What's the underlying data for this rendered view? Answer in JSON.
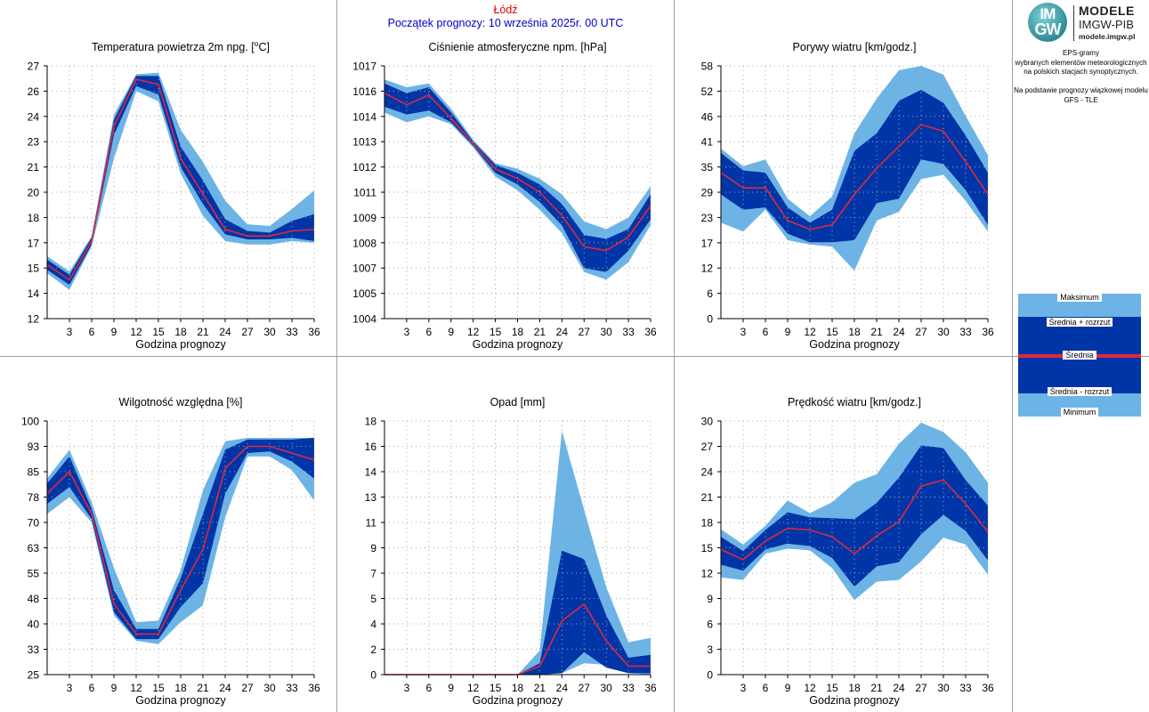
{
  "header": {
    "station": "Łódź",
    "forecast_start": "Początek prognozy: 10 września 2025r. 00 UTC"
  },
  "logo": {
    "circle_top": "IM",
    "circle_bottom": "GW",
    "title": "MODELE",
    "org": "IMGW-PIB",
    "site": "modele.imgw.pl"
  },
  "description": {
    "lines": [
      "EPS-gramy",
      "wybranych elementów meteorologicznych",
      "na polskich stacjach  synoptycznych.",
      "",
      "Na podstawie prognozy wiązkowej modelu",
      "GFS - TLE"
    ]
  },
  "legend": {
    "max": "Maksimum",
    "mean_plus": "Średnia + rozrzut",
    "mean": "Średnia",
    "mean_minus": "Średnia - rozrzut",
    "min": "Minimum"
  },
  "colors": {
    "light_band": "#6cb4e6",
    "dark_band": "#0035a8",
    "mean_line": "#e0283a",
    "grid_dot": "#a8a8a8",
    "divider": "#a0a0a0"
  },
  "chart_data": [
    {
      "type": "area",
      "title": "Temperatura powietrza 2m npg. [°C]",
      "title_main": "Temperatura powietrza 2m npg. [",
      "title_sup": "o",
      "title_end": "C]",
      "xlabel": "Godzina prognozy",
      "x": [
        0,
        3,
        6,
        9,
        12,
        15,
        18,
        21,
        24,
        27,
        30,
        33,
        36
      ],
      "xticks": [
        3,
        6,
        9,
        12,
        15,
        18,
        21,
        24,
        27,
        30,
        33,
        36
      ],
      "ylim": [
        12,
        27
      ],
      "yticks": [
        12,
        14,
        15,
        17,
        18,
        20,
        21,
        23,
        24,
        26,
        27
      ],
      "ytick_values": [
        12,
        13.5,
        15,
        16.5,
        18,
        19.5,
        21,
        22.5,
        24,
        25.5,
        27
      ],
      "series": {
        "min": [
          14.7,
          13.7,
          16.3,
          21.5,
          25.5,
          24.9,
          20.6,
          18.1,
          16.6,
          16.4,
          16.4,
          16.6,
          16.5
        ],
        "lower": [
          14.9,
          14.0,
          16.4,
          22.9,
          25.8,
          25.3,
          21.0,
          18.8,
          17.0,
          16.7,
          16.7,
          16.8,
          16.6
        ],
        "mean": [
          15.2,
          14.3,
          16.6,
          23.4,
          26.2,
          25.9,
          21.5,
          19.4,
          17.3,
          16.9,
          16.9,
          17.2,
          17.3
        ],
        "upper": [
          15.5,
          14.6,
          16.8,
          23.8,
          26.4,
          26.4,
          22.2,
          20.2,
          17.9,
          17.2,
          17.1,
          17.8,
          18.2
        ],
        "max": [
          15.7,
          14.8,
          16.9,
          24.1,
          26.5,
          26.6,
          23.2,
          21.3,
          19.0,
          17.6,
          17.5,
          18.5,
          19.6
        ]
      }
    },
    {
      "type": "area",
      "title": "Ciśnienie atmosferyczne npm. [hPa]",
      "xlabel": "Godzina prognozy",
      "x": [
        0,
        3,
        6,
        9,
        12,
        15,
        18,
        21,
        24,
        27,
        30,
        33,
        36
      ],
      "xticks": [
        3,
        6,
        9,
        12,
        15,
        18,
        21,
        24,
        27,
        30,
        33,
        36
      ],
      "ylim": [
        1004,
        1017
      ],
      "yticks": [
        1004,
        1005,
        1007,
        1008,
        1009,
        1011,
        1012,
        1013,
        1014,
        1016,
        1017
      ],
      "ytick_values": [
        1004,
        1005.3,
        1006.6,
        1007.9,
        1009.2,
        1010.5,
        1011.8,
        1013.1,
        1014.4,
        1015.7,
        1017
      ],
      "series": {
        "min": [
          1014.6,
          1014.1,
          1014.4,
          1014.0,
          1012.8,
          1011.3,
          1010.6,
          1009.6,
          1008.4,
          1006.4,
          1006.0,
          1006.9,
          1008.8
        ],
        "lower": [
          1014.9,
          1014.5,
          1014.7,
          1014.1,
          1012.9,
          1011.5,
          1010.9,
          1010.0,
          1008.8,
          1006.6,
          1006.4,
          1007.5,
          1009.1
        ],
        "mean": [
          1015.6,
          1015.0,
          1015.5,
          1014.3,
          1013.0,
          1011.7,
          1011.2,
          1010.5,
          1009.3,
          1007.7,
          1007.5,
          1008.2,
          1009.8
        ],
        "upper": [
          1016.1,
          1015.6,
          1015.9,
          1014.6,
          1013.1,
          1011.9,
          1011.5,
          1010.9,
          1009.9,
          1008.3,
          1008.1,
          1008.6,
          1010.4
        ],
        "max": [
          1016.3,
          1015.9,
          1016.1,
          1014.8,
          1013.2,
          1012.0,
          1011.7,
          1011.2,
          1010.4,
          1009.0,
          1008.6,
          1009.2,
          1010.8
        ]
      }
    },
    {
      "type": "area",
      "title": "Porywy wiatru [km/godz.]",
      "xlabel": "Godzina prognozy",
      "x": [
        0,
        3,
        6,
        9,
        12,
        15,
        18,
        21,
        24,
        27,
        30,
        33,
        36
      ],
      "xticks": [
        3,
        6,
        9,
        12,
        15,
        18,
        21,
        24,
        27,
        30,
        33,
        36
      ],
      "ylim": [
        0,
        58
      ],
      "yticks": [
        0,
        6,
        12,
        17,
        23,
        29,
        35,
        41,
        46,
        52,
        58
      ],
      "ytick_values": [
        0,
        5.8,
        11.6,
        17.4,
        23.2,
        29,
        34.8,
        40.6,
        46.4,
        52.2,
        58
      ],
      "series": {
        "min": [
          22,
          20,
          25,
          18,
          17,
          16.5,
          11,
          22.5,
          24.5,
          32,
          33,
          27,
          20
        ],
        "lower": [
          28.5,
          25,
          25.5,
          19.5,
          17.5,
          17.5,
          18,
          26.5,
          27.5,
          36.5,
          35.5,
          29.5,
          21.5
        ],
        "mean": [
          33.5,
          30,
          30,
          22.5,
          20.5,
          21.5,
          28.5,
          34.5,
          39.5,
          44.5,
          43,
          36,
          28.5
        ],
        "upper": [
          38,
          34,
          33.5,
          25.5,
          22,
          25,
          38.5,
          42.5,
          50,
          52.5,
          49.5,
          42,
          33.5
        ],
        "max": [
          39,
          35,
          36.5,
          27.5,
          23.5,
          28,
          42.5,
          50.5,
          57,
          58,
          56,
          46.5,
          37.5
        ]
      }
    },
    {
      "type": "area",
      "title": "Wilgotność względna [%]",
      "xlabel": "Godzina prognozy",
      "x": [
        0,
        3,
        6,
        9,
        12,
        15,
        18,
        21,
        24,
        27,
        30,
        33,
        36
      ],
      "xticks": [
        3,
        6,
        9,
        12,
        15,
        18,
        21,
        24,
        27,
        30,
        33,
        36
      ],
      "ylim": [
        25,
        100
      ],
      "yticks": [
        25,
        33,
        40,
        48,
        55,
        63,
        70,
        78,
        85,
        93,
        100
      ],
      "ytick_values": [
        25,
        32.5,
        40,
        47.5,
        55,
        62.5,
        70,
        77.5,
        85,
        92.5,
        100
      ],
      "series": {
        "min": [
          72.5,
          77.5,
          70,
          42.5,
          35,
          34,
          40.5,
          45.5,
          71.5,
          89.5,
          89.5,
          85.5,
          76.5
        ],
        "lower": [
          75.5,
          80.5,
          71,
          43.5,
          35.5,
          35.5,
          45,
          52,
          78.5,
          90.5,
          91,
          88,
          83
        ],
        "mean": [
          78.5,
          85,
          72.5,
          46,
          37,
          37,
          50,
          62,
          86,
          92.5,
          92.5,
          90.5,
          88.5
        ],
        "upper": [
          81.5,
          89.5,
          74,
          50,
          38.5,
          38.5,
          53.5,
          72.5,
          91.5,
          94.5,
          94.5,
          94.5,
          95
        ],
        "max": [
          83,
          91.5,
          76,
          56.5,
          40.5,
          41,
          56,
          79.5,
          94,
          95,
          95,
          95,
          95
        ]
      }
    },
    {
      "type": "area",
      "title": "Opad [mm]",
      "xlabel": "Godzina prognozy",
      "x": [
        0,
        3,
        6,
        9,
        12,
        15,
        18,
        21,
        24,
        27,
        30,
        33,
        36
      ],
      "xticks": [
        3,
        6,
        9,
        12,
        15,
        18,
        21,
        24,
        27,
        30,
        33,
        36
      ],
      "ylim": [
        0,
        18
      ],
      "yticks": [
        0,
        2,
        4,
        5,
        7,
        9,
        11,
        13,
        14,
        16,
        18
      ],
      "ytick_values": [
        0,
        1.8,
        3.6,
        5.4,
        7.2,
        9,
        10.8,
        12.6,
        14.4,
        16.2,
        18
      ],
      "series": {
        "min": [
          0,
          0,
          0,
          0,
          0,
          0,
          0,
          0,
          0.1,
          0.8,
          0.7,
          0.1,
          0
        ],
        "lower": [
          0,
          0,
          0,
          0,
          0,
          0,
          0,
          0,
          0.1,
          1.6,
          0.5,
          0.1,
          0.1
        ],
        "mean": [
          0,
          0,
          0,
          0,
          0,
          0,
          0,
          0.6,
          3.8,
          5.0,
          2.4,
          0.6,
          0.6
        ],
        "upper": [
          0,
          0,
          0,
          0,
          0,
          0,
          0,
          0.8,
          8.8,
          8.2,
          4.2,
          1.2,
          1.4
        ],
        "max": [
          0,
          0,
          0,
          0,
          0,
          0,
          0,
          1.7,
          17.3,
          11.7,
          6.2,
          2.3,
          2.6
        ]
      }
    },
    {
      "type": "area",
      "title": "Prędkość wiatru [km/godz.]",
      "xlabel": "Godzina prognozy",
      "x": [
        0,
        3,
        6,
        9,
        12,
        15,
        18,
        21,
        24,
        27,
        30,
        33,
        36
      ],
      "xticks": [
        3,
        6,
        9,
        12,
        15,
        18,
        21,
        24,
        27,
        30,
        33,
        36
      ],
      "ylim": [
        0,
        30
      ],
      "yticks": [
        0,
        3,
        6,
        9,
        12,
        15,
        18,
        21,
        24,
        27,
        30
      ],
      "ytick_values": [
        0,
        3,
        6,
        9,
        12,
        15,
        18,
        21,
        24,
        27,
        30
      ],
      "series": {
        "min": [
          11.5,
          11.2,
          14.3,
          14.9,
          14.7,
          12.6,
          8.8,
          11.0,
          11.2,
          13.4,
          16.2,
          15.4,
          11.8
        ],
        "lower": [
          13.0,
          12.3,
          14.8,
          15.5,
          15.2,
          13.8,
          10.4,
          12.8,
          13.3,
          16.6,
          18.9,
          17.0,
          13.5
        ],
        "mean": [
          14.8,
          13.6,
          15.8,
          17.3,
          17.1,
          16.3,
          14.3,
          16.4,
          18.1,
          22.3,
          23.0,
          20.2,
          16.9
        ],
        "upper": [
          16.3,
          14.6,
          17.1,
          19.2,
          18.6,
          18.5,
          18.4,
          20.3,
          23.3,
          27.1,
          26.8,
          23.0,
          20.0
        ],
        "max": [
          17.2,
          15.4,
          17.6,
          20.6,
          19.1,
          20.4,
          22.7,
          23.7,
          27.3,
          29.8,
          28.7,
          26.3,
          22.7
        ]
      }
    }
  ]
}
